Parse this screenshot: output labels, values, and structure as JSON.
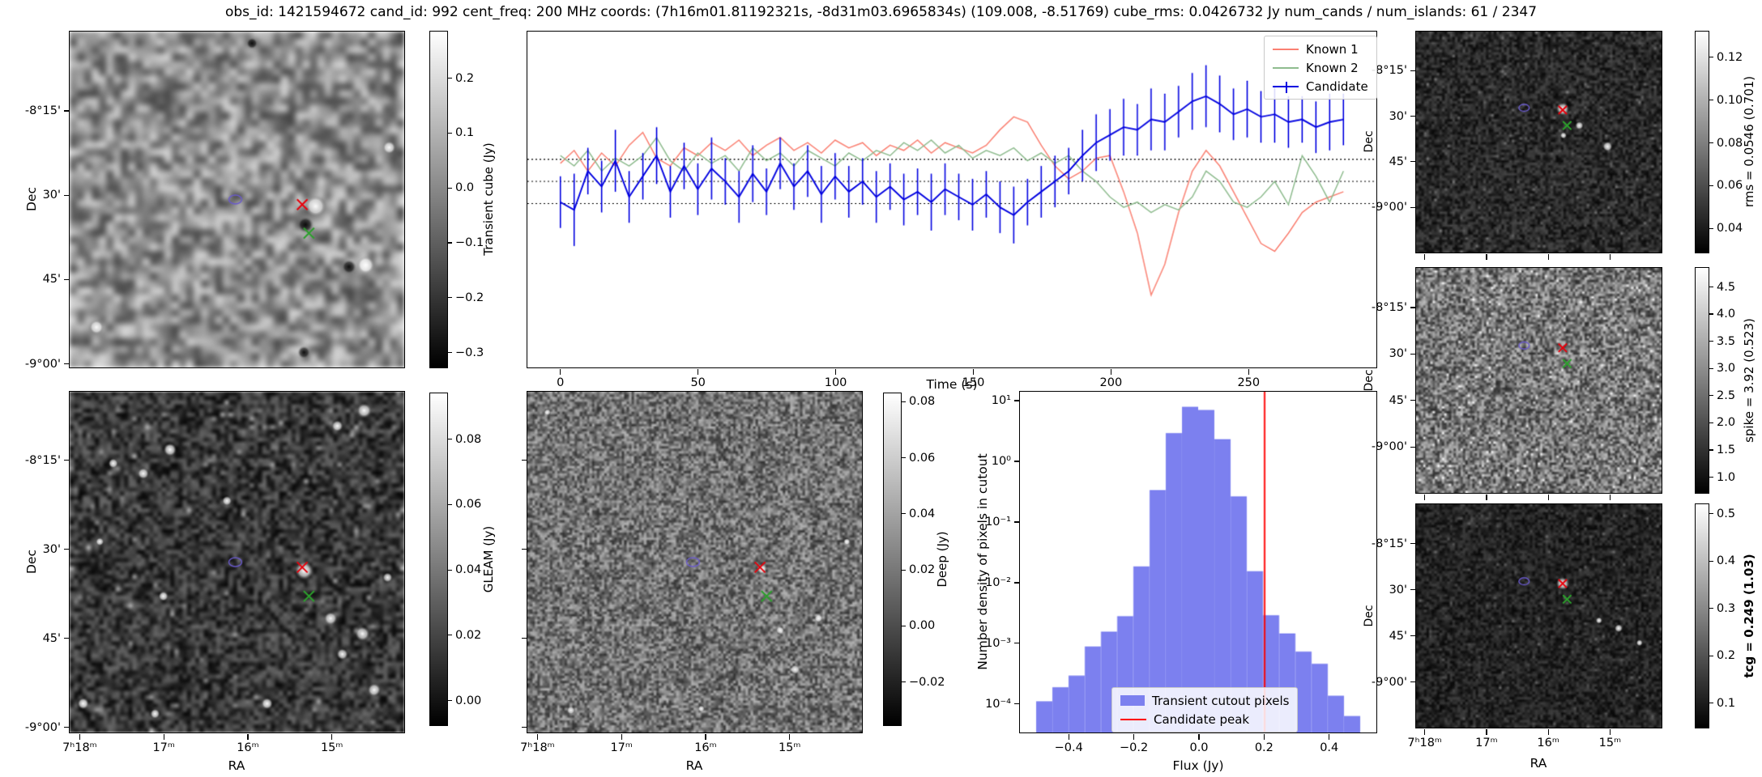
{
  "title": "obs_id: 1421594672 cand_id: 992 cent_freq: 200 MHz coords: (7h16m01.81192321s, -8d31m03.6965834s) (109.008, -8.51769) cube_rms: 0.0426732 Jy num_cands / num_islands: 61 / 2347",
  "colors": {
    "known1": "#fa8072",
    "known2": "#8fbc8f",
    "candidate": "#0202e0",
    "hist_bar": "#7c80ef",
    "peak_line": "#ff0000",
    "marker_red": "#e8000b",
    "marker_green": "#2ca02c",
    "marker_circle": "#6a5acd"
  },
  "panels": {
    "transient": {
      "ylabel": "Dec",
      "dec_tick_labels": [
        "-8°15'",
        "30'",
        "45'",
        "-9°00'"
      ],
      "colorbar": {
        "label": "Transient cube (Jy)",
        "vmin": -0.33,
        "vmax": 0.285,
        "ticks": [
          {
            "v": 0.2,
            "label": "0.2"
          },
          {
            "v": 0.1,
            "label": "0.1"
          },
          {
            "v": 0.0,
            "label": "0.0"
          },
          {
            "v": -0.1,
            "label": "−0.1"
          },
          {
            "v": -0.2,
            "label": "−0.2"
          },
          {
            "v": -0.3,
            "label": "−0.3"
          }
        ]
      }
    },
    "gleam": {
      "xlabel": "RA",
      "ylabel": "Dec",
      "dec_tick_labels": [
        "-8°15'",
        "30'",
        "45'",
        "-9°00'"
      ],
      "ra_tick_labels": [
        "7ʰ18ᵐ",
        "17ᵐ",
        "16ᵐ",
        "15ᵐ"
      ],
      "colorbar": {
        "label": "GLEAM (Jy)",
        "vmin": -0.008,
        "vmax": 0.094,
        "ticks": [
          {
            "v": 0.08,
            "label": "0.08"
          },
          {
            "v": 0.06,
            "label": "0.06"
          },
          {
            "v": 0.04,
            "label": "0.04"
          },
          {
            "v": 0.02,
            "label": "0.02"
          },
          {
            "v": 0.0,
            "label": "0.00"
          }
        ]
      }
    },
    "deep": {
      "xlabel": "RA",
      "ra_tick_labels": [
        "7ʰ18ᵐ",
        "17ᵐ",
        "16ᵐ",
        "15ᵐ"
      ],
      "colorbar": {
        "label": "Deep (Jy)",
        "vmin": -0.036,
        "vmax": 0.083,
        "ticks": [
          {
            "v": 0.08,
            "label": "0.08"
          },
          {
            "v": 0.06,
            "label": "0.06"
          },
          {
            "v": 0.04,
            "label": "0.04"
          },
          {
            "v": 0.02,
            "label": "0.02"
          },
          {
            "v": 0.0,
            "label": "0.00"
          },
          {
            "v": -0.02,
            "label": "−0.02"
          }
        ]
      }
    },
    "rms": {
      "ylabel": "Dec",
      "dec_tick_labels": [
        "-8°15'",
        "30'",
        "45'",
        "-9°00'"
      ],
      "colorbar": {
        "label": "rms = 0.0546 (0.701)",
        "vmin": 0.028,
        "vmax": 0.132,
        "ticks": [
          {
            "v": 0.12,
            "label": "0.12"
          },
          {
            "v": 0.1,
            "label": "0.10"
          },
          {
            "v": 0.08,
            "label": "0.08"
          },
          {
            "v": 0.06,
            "label": "0.06"
          },
          {
            "v": 0.04,
            "label": "0.04"
          }
        ]
      }
    },
    "spike": {
      "ylabel": "Dec",
      "dec_tick_labels": [
        "-8°15'",
        "30'",
        "45'",
        "-9°00'"
      ],
      "colorbar": {
        "label": "spike = 3.92 (0.523)",
        "vmin": 0.68,
        "vmax": 4.85,
        "ticks": [
          {
            "v": 4.5,
            "label": "4.5"
          },
          {
            "v": 4.0,
            "label": "4.0"
          },
          {
            "v": 3.5,
            "label": "3.5"
          },
          {
            "v": 3.0,
            "label": "3.0"
          },
          {
            "v": 2.5,
            "label": "2.5"
          },
          {
            "v": 2.0,
            "label": "2.0"
          },
          {
            "v": 1.5,
            "label": "1.5"
          },
          {
            "v": 1.0,
            "label": "1.0"
          }
        ]
      }
    },
    "tcg": {
      "xlabel": "RA",
      "ylabel": "Dec",
      "dec_tick_labels": [
        "-8°15'",
        "30'",
        "45'",
        "-9°00'"
      ],
      "ra_tick_labels": [
        "7ʰ18ᵐ",
        "17ᵐ",
        "16ᵐ",
        "15ᵐ"
      ],
      "colorbar": {
        "label": "tcg = 0.249 (1.03)",
        "bold": true,
        "vmin": 0.045,
        "vmax": 0.52,
        "ticks": [
          {
            "v": 0.5,
            "label": "0.5"
          },
          {
            "v": 0.4,
            "label": "0.4"
          },
          {
            "v": 0.3,
            "label": "0.3"
          },
          {
            "v": 0.2,
            "label": "0.2"
          },
          {
            "v": 0.1,
            "label": "0.1"
          }
        ]
      }
    }
  },
  "markers": {
    "main": [
      {
        "shape": "circle",
        "role": "known-source-ellipse",
        "x": 0.495,
        "y": 0.5
      },
      {
        "shape": "x",
        "role": "candidate-position",
        "color_key": "marker_red",
        "x": 0.695,
        "y": 0.515
      },
      {
        "shape": "x",
        "role": "known-position",
        "color_key": "marker_green",
        "x": 0.715,
        "y": 0.6
      }
    ],
    "right": [
      {
        "shape": "circle",
        "role": "known-source-ellipse",
        "x": 0.44,
        "y": 0.345
      },
      {
        "shape": "x",
        "role": "candidate-position",
        "color_key": "marker_red",
        "x": 0.597,
        "y": 0.355
      },
      {
        "shape": "x",
        "role": "known-position",
        "color_key": "marker_green",
        "x": 0.615,
        "y": 0.425
      }
    ]
  },
  "chart_data": [
    {
      "id": "lightcurve",
      "type": "line",
      "xlabel": "Time (s)",
      "legend_position": "upper right",
      "xlim": [
        -12,
        297
      ],
      "ylim": [
        -0.36,
        0.29
      ],
      "xticks": [
        {
          "v": 0,
          "label": "0"
        },
        {
          "v": 50,
          "label": "50"
        },
        {
          "v": 100,
          "label": "100"
        },
        {
          "v": 150,
          "label": "150"
        },
        {
          "v": 200,
          "label": "200"
        },
        {
          "v": 250,
          "label": "250"
        }
      ],
      "hlines": [
        0.0427,
        0.0,
        -0.0427
      ],
      "x": [
        0,
        5,
        10,
        15,
        20,
        25,
        30,
        35,
        40,
        45,
        50,
        55,
        60,
        65,
        70,
        75,
        80,
        85,
        90,
        95,
        100,
        105,
        110,
        115,
        120,
        125,
        130,
        135,
        140,
        145,
        150,
        155,
        160,
        165,
        170,
        175,
        180,
        185,
        190,
        195,
        200,
        205,
        210,
        215,
        220,
        225,
        230,
        235,
        240,
        245,
        250,
        255,
        260,
        265,
        270,
        275,
        280,
        285
      ],
      "series": [
        {
          "name": "Known 1",
          "values": [
            0.035,
            0.06,
            0.02,
            0.055,
            0.03,
            0.07,
            0.095,
            0.045,
            0.03,
            0.065,
            0.05,
            0.075,
            0.06,
            0.08,
            0.05,
            0.07,
            0.085,
            0.06,
            0.075,
            0.055,
            0.08,
            0.065,
            0.075,
            0.05,
            0.07,
            0.06,
            0.08,
            0.055,
            0.075,
            0.065,
            0.055,
            0.07,
            0.1,
            0.125,
            0.115,
            0.07,
            0.03,
            0.005,
            0.02,
            0.045,
            0.05,
            -0.02,
            -0.1,
            -0.22,
            -0.16,
            -0.06,
            0.02,
            0.06,
            0.03,
            -0.02,
            -0.07,
            -0.12,
            -0.135,
            -0.1,
            -0.06,
            -0.04,
            -0.03,
            -0.02
          ]
        },
        {
          "name": "Known 2",
          "values": [
            0.05,
            0.03,
            0.06,
            0.02,
            0.045,
            0.03,
            0.05,
            0.085,
            0.04,
            0.02,
            0.055,
            0.035,
            0.05,
            0.02,
            0.065,
            0.04,
            0.055,
            0.03,
            0.06,
            0.045,
            0.03,
            0.055,
            0.04,
            0.06,
            0.05,
            0.075,
            0.06,
            0.08,
            0.055,
            0.07,
            0.045,
            0.06,
            0.05,
            0.065,
            0.04,
            0.055,
            0.035,
            0.05,
            0.02,
            0.0,
            -0.03,
            -0.05,
            -0.04,
            -0.06,
            -0.045,
            -0.055,
            -0.03,
            0.02,
            0.0,
            -0.04,
            -0.05,
            -0.03,
            0.0,
            -0.045,
            0.05,
            0.01,
            -0.04,
            0.02
          ]
        },
        {
          "name": "Candidate",
          "values": [
            -0.04,
            -0.055,
            0.02,
            -0.01,
            0.04,
            -0.03,
            0.01,
            0.05,
            -0.02,
            0.03,
            -0.015,
            0.025,
            0.0,
            -0.03,
            0.015,
            -0.02,
            0.035,
            -0.01,
            0.02,
            -0.025,
            0.01,
            -0.02,
            0.0,
            -0.03,
            -0.01,
            -0.035,
            -0.02,
            -0.04,
            -0.015,
            -0.03,
            -0.045,
            -0.025,
            -0.05,
            -0.065,
            -0.04,
            -0.02,
            0.0,
            0.02,
            0.05,
            0.075,
            0.09,
            0.105,
            0.1,
            0.12,
            0.115,
            0.135,
            0.155,
            0.165,
            0.15,
            0.13,
            0.14,
            0.125,
            0.13,
            0.115,
            0.12,
            0.105,
            0.115,
            0.12
          ],
          "errors": [
            0.05,
            0.07,
            0.045,
            0.05,
            0.06,
            0.05,
            0.045,
            0.055,
            0.05,
            0.045,
            0.05,
            0.06,
            0.045,
            0.05,
            0.055,
            0.045,
            0.05,
            0.045,
            0.05,
            0.055,
            0.045,
            0.05,
            0.045,
            0.05,
            0.045,
            0.05,
            0.045,
            0.055,
            0.05,
            0.045,
            0.05,
            0.045,
            0.05,
            0.055,
            0.045,
            0.05,
            0.05,
            0.045,
            0.05,
            0.055,
            0.05,
            0.055,
            0.05,
            0.06,
            0.055,
            0.05,
            0.055,
            0.06,
            0.055,
            0.05,
            0.055,
            0.05,
            0.055,
            0.05,
            0.045,
            0.05,
            0.055,
            0.05
          ]
        }
      ]
    },
    {
      "id": "flux-histogram",
      "type": "bar",
      "xlabel": "Flux (Jy)",
      "ylabel": "Number density of pixels in cutout",
      "yscale": "log",
      "xlim": [
        -0.55,
        0.55
      ],
      "ylim": [
        3.2e-05,
        14
      ],
      "bin_start": -0.5,
      "bin_width": 0.05,
      "values": [
        0.000105,
        0.00018,
        0.00028,
        0.00085,
        0.0015,
        0.0027,
        0.018,
        0.33,
        2.9,
        7.9,
        7.0,
        2.3,
        0.26,
        0.015,
        0.0028,
        0.0014,
        0.0007,
        0.00044,
        0.00013,
        6e-05
      ],
      "candidate_peak": 0.205,
      "xticks": [
        {
          "v": -0.4,
          "label": "−0.4"
        },
        {
          "v": -0.2,
          "label": "−0.2"
        },
        {
          "v": 0.0,
          "label": "0.0"
        },
        {
          "v": 0.2,
          "label": "0.2"
        },
        {
          "v": 0.4,
          "label": "0.4"
        }
      ],
      "yticks": [
        {
          "v": 10,
          "label": "10¹"
        },
        {
          "v": 1,
          "label": "10⁰"
        },
        {
          "v": 0.1,
          "label": "10⁻¹"
        },
        {
          "v": 0.01,
          "label": "10⁻²"
        },
        {
          "v": 0.001,
          "label": "10⁻³"
        },
        {
          "v": 0.0001,
          "label": "10⁻⁴"
        }
      ],
      "legend": [
        {
          "label": "Transient cutout pixels",
          "type": "patch"
        },
        {
          "label": "Candidate peak",
          "type": "line"
        }
      ]
    }
  ]
}
